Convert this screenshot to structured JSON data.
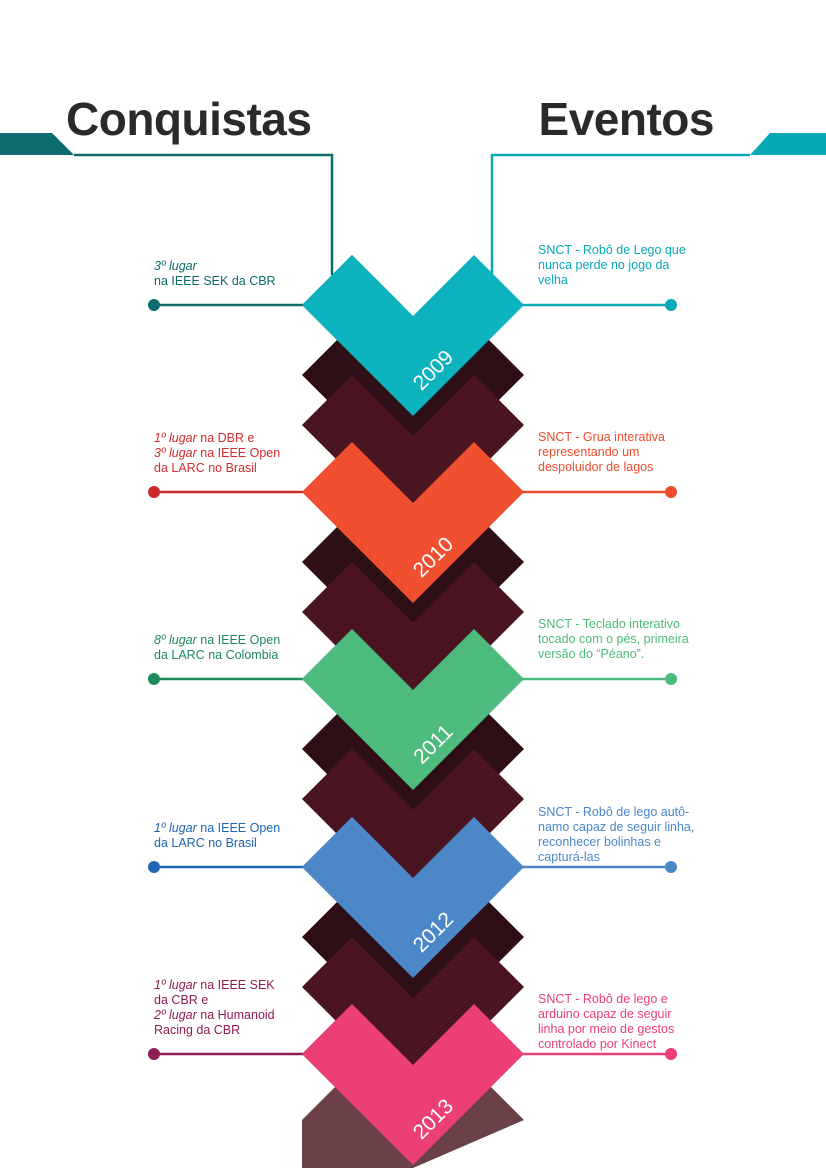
{
  "headings": {
    "left": "Conquistas",
    "right": "Eventos"
  },
  "colors": {
    "teal": "#0E6B6F",
    "cyan": "#07A9B7",
    "dark_chevron": "#4A1520",
    "darker_chevron": "#2E0F15"
  },
  "milestones": [
    {
      "year": "2009",
      "color": "#0CB2BD",
      "left_color": "#0D6A6E",
      "right_color": "#07A9B7",
      "achievement": [
        [
          {
            "t": "3º lugar",
            "i": true
          }
        ],
        [
          {
            "t": "na IEEE SEK da CBR"
          }
        ]
      ],
      "achievement_color": "#0D6A6E",
      "event": "SNCT - Robô de Lego que nunca perde no jogo da velha",
      "event_lines": [
        "SNCT - Robô de Lego que",
        "nunca perde no jogo da",
        "velha"
      ]
    },
    {
      "year": "2010",
      "color": "#F0502F",
      "left_color": "#CC2B2B",
      "right_color": "#EF4D2F",
      "achievement": [
        [
          {
            "t": "1º lugar",
            "i": true
          },
          {
            "t": " na DBR e"
          }
        ],
        [
          {
            "t": "3º lugar",
            "i": true
          },
          {
            "t": "  na IEEE Open"
          }
        ],
        [
          {
            "t": "da LARC no Brasil"
          }
        ]
      ],
      "achievement_color": "#D42D2D",
      "event": "SNCT - Grua interativa representando um despoluidor de lagos",
      "event_lines": [
        "SNCT - Grua interativa",
        "representando um",
        "despoluidor de lagos"
      ]
    },
    {
      "year": "2011",
      "color": "#4DBB7D",
      "left_color": "#1E8A5C",
      "right_color": "#4DBB7D",
      "achievement": [
        [
          {
            "t": "8º lugar",
            "i": true
          },
          {
            "t": " na IEEE Open"
          }
        ],
        [
          {
            "t": "da LARC na Colombia"
          }
        ]
      ],
      "achievement_color": "#1E8A5C",
      "event": "SNCT - Teclado interativo tocado com o pés, primeira versão do “Péano”.",
      "event_lines": [
        "SNCT - Teclado interativo",
        "tocado com o pés, primeira",
        "versão do “Péano”."
      ]
    },
    {
      "year": "2012",
      "color": "#4C87C7",
      "left_color": "#1E66B3",
      "right_color": "#4C87C7",
      "achievement": [
        [
          {
            "t": "1º lugar",
            "i": true
          },
          {
            "t": " na IEEE Open"
          }
        ],
        [
          {
            "t": "da LARC no Brasil"
          }
        ]
      ],
      "achievement_color": "#1E66B3",
      "event": "SNCT - Robô de lego autônamo capaz de seguir linha, reconhecer bolinhas e capturá-las",
      "event_lines": [
        "SNCT - Robô de lego autô-",
        "namo capaz de seguir linha,",
        "reconhecer bolinhas e",
        "capturá-las"
      ]
    },
    {
      "year": "2013",
      "color": "#EC3F76",
      "left_color": "#8E1C54",
      "right_color": "#EC3F76",
      "achievement": [
        [
          {
            "t": "1º lugar",
            "i": true
          },
          {
            "t": "  na IEEE SEK"
          }
        ],
        [
          {
            "t": "da CBR e"
          }
        ],
        [
          {
            "t": "2º lugar",
            "i": true
          },
          {
            "t": " na Humanoid"
          }
        ],
        [
          {
            "t": "Racing da CBR"
          }
        ]
      ],
      "achievement_color": "#8E1C54",
      "event": "SNCT - Robô de lego e arduino capaz de seguir linha por meio de gestos controlado por Kinect",
      "event_lines": [
        "SNCT - Robô de lego e",
        "arduino capaz de seguir",
        "linha por meio de gestos",
        "controlado por Kinect"
      ]
    }
  ]
}
